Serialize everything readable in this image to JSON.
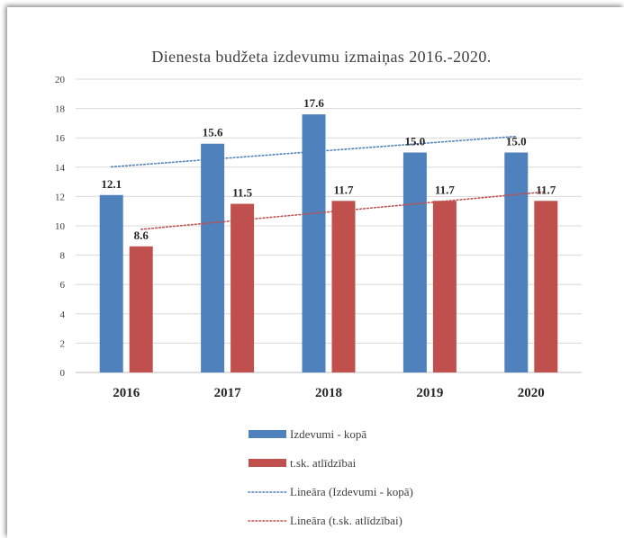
{
  "chart_data": {
    "type": "bar",
    "title": "Dienesta budžeta izdevumu izmaiņas 2016.-2020.",
    "categories": [
      "2016",
      "2017",
      "2018",
      "2019",
      "2020"
    ],
    "series": [
      {
        "name": "Izdevumi - kopā",
        "values": [
          12.1,
          15.6,
          17.6,
          15.0,
          15.0
        ],
        "labels": [
          "12.1",
          "15.6",
          "17.6",
          "15.0",
          "15.0"
        ],
        "color": "#4f81bd"
      },
      {
        "name": "t.sk. atlīdzībai",
        "values": [
          8.6,
          11.5,
          11.7,
          11.7,
          11.7
        ],
        "labels": [
          "8.6",
          "11.5",
          "11.7",
          "11.7",
          "11.7"
        ],
        "color": "#c0504d"
      }
    ],
    "trendlines": [
      {
        "name": "Lineāra (Izdevumi - kopā)",
        "series_index": 0,
        "style": "dotted",
        "color": "#4f81bd"
      },
      {
        "name": "Lineāra (t.sk. atlīdzībai)",
        "series_index": 1,
        "style": "dotted",
        "color": "#c0504d"
      }
    ],
    "yticks": [
      "0",
      "2",
      "4",
      "6",
      "8",
      "10",
      "12",
      "14",
      "16",
      "18",
      "20"
    ],
    "ylim": [
      0,
      20
    ],
    "grid": true,
    "legend_position": "bottom"
  }
}
